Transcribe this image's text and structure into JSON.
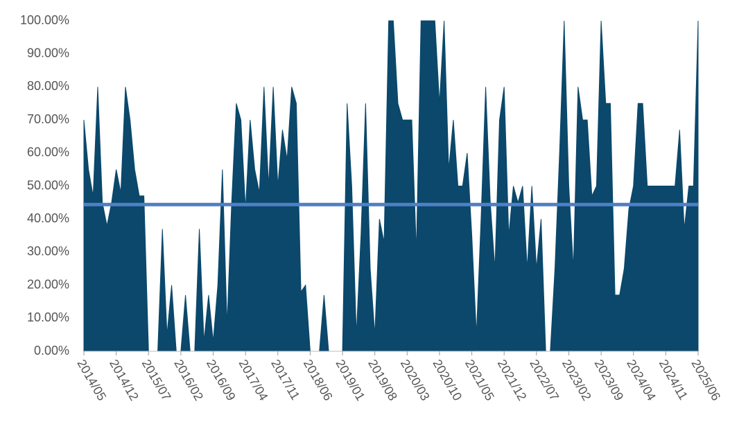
{
  "chart_data": {
    "type": "area",
    "categories": [
      "2014/05",
      null,
      null,
      null,
      null,
      null,
      null,
      "2014/12",
      null,
      null,
      null,
      null,
      null,
      null,
      "2015/07",
      null,
      null,
      null,
      null,
      null,
      null,
      "2016/02",
      null,
      null,
      null,
      null,
      null,
      null,
      "2016/09",
      null,
      null,
      null,
      null,
      null,
      null,
      "2017/04",
      null,
      null,
      null,
      null,
      null,
      null,
      "2017/11",
      null,
      null,
      null,
      null,
      null,
      null,
      "2018/06",
      null,
      null,
      null,
      null,
      null,
      null,
      "2019/01",
      null,
      null,
      null,
      null,
      null,
      null,
      "2019/08",
      null,
      null,
      null,
      null,
      null,
      null,
      "2020/03",
      null,
      null,
      null,
      null,
      null,
      null,
      "2020/10",
      null,
      null,
      null,
      null,
      null,
      null,
      "2021/05",
      null,
      null,
      null,
      null,
      null,
      null,
      "2021/12",
      null,
      null,
      null,
      null,
      null,
      null,
      "2022/07",
      null,
      null,
      null,
      null,
      null,
      null,
      "2023/02",
      null,
      null,
      null,
      null,
      null,
      null,
      "2023/09",
      null,
      null,
      null,
      null,
      null,
      null,
      "2024/04",
      null,
      null,
      null,
      null,
      null,
      null,
      "2024/11",
      null,
      null,
      null,
      null,
      null,
      null,
      "2025/06"
    ],
    "values": [
      70,
      55,
      47,
      80,
      45,
      38,
      45,
      55,
      48,
      80,
      70,
      55,
      47,
      47,
      0,
      0,
      0,
      37,
      5,
      20,
      0,
      0,
      17,
      0,
      0,
      37,
      3,
      17,
      3,
      20,
      55,
      8,
      45,
      75,
      70,
      43,
      70,
      55,
      48,
      80,
      50,
      80,
      50,
      67,
      58,
      80,
      75,
      18,
      20,
      0,
      0,
      0,
      17,
      0,
      0,
      0,
      0,
      75,
      50,
      5,
      35,
      75,
      25,
      5,
      40,
      33,
      100,
      100,
      75,
      70,
      70,
      70,
      30,
      100,
      100,
      100,
      100,
      75,
      100,
      55,
      70,
      50,
      50,
      60,
      35,
      5,
      40,
      80,
      45,
      25,
      70,
      80,
      35,
      50,
      45,
      50,
      25,
      50,
      25,
      40,
      0,
      0,
      25,
      60,
      100,
      50,
      25,
      80,
      70,
      70,
      47,
      50,
      100,
      75,
      75,
      17,
      17,
      25,
      43,
      50,
      75,
      75,
      50,
      50,
      50,
      50,
      50,
      50,
      50,
      67,
      37,
      50,
      50,
      100
    ],
    "color": "#0b486b",
    "reference_line": {
      "value": 44.4,
      "color": "#4f7fc4"
    },
    "ylim": [
      0,
      100
    ],
    "yticks": [
      {
        "value": 0,
        "label": "0.00%"
      },
      {
        "value": 10,
        "label": "10.00%"
      },
      {
        "value": 20,
        "label": "20.00%"
      },
      {
        "value": 30,
        "label": "30.00%"
      },
      {
        "value": 40,
        "label": "40.00%"
      },
      {
        "value": 50,
        "label": "50.00%"
      },
      {
        "value": 60,
        "label": "60.00%"
      },
      {
        "value": 70,
        "label": "70.00%"
      },
      {
        "value": 80,
        "label": "80.00%"
      },
      {
        "value": 90,
        "label": "90.00%"
      },
      {
        "value": 100,
        "label": "100.00%"
      }
    ]
  }
}
